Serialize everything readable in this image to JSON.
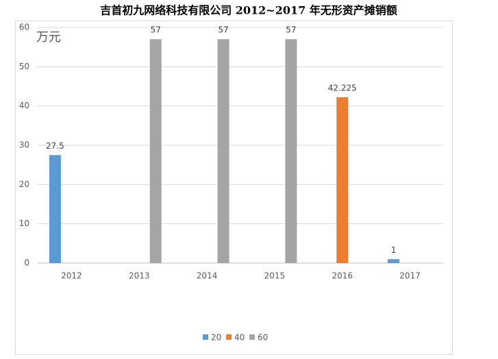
{
  "chart_data": {
    "type": "bar",
    "title": "吉首初九网络科技有限公司 2012~2017 年无形资产摊销额",
    "annotation": "万元",
    "categories": [
      "2012",
      "2013",
      "2014",
      "2015",
      "2016",
      "2017"
    ],
    "series": [
      {
        "name": "20",
        "color": "#5b9bd5",
        "values": [
          27.5,
          null,
          null,
          null,
          null,
          1
        ]
      },
      {
        "name": "40",
        "color": "#ed7d31",
        "values": [
          null,
          null,
          null,
          null,
          42.225,
          null
        ]
      },
      {
        "name": "60",
        "color": "#a5a5a5",
        "values": [
          null,
          57,
          57,
          57,
          null,
          null
        ]
      }
    ],
    "ylim": [
      0,
      60
    ],
    "yticks": [
      0,
      10,
      20,
      30,
      40,
      50,
      60
    ],
    "grid": true,
    "legend": "bottom"
  }
}
